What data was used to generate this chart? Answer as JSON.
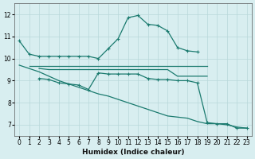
{
  "xlabel": "Humidex (Indice chaleur)",
  "bg_color": "#d8eef0",
  "line_color": "#1a7a6e",
  "grid_color": "#b8d8da",
  "xlim": [
    -0.5,
    23.5
  ],
  "ylim": [
    6.5,
    12.5
  ],
  "yticks": [
    7,
    8,
    9,
    10,
    11,
    12
  ],
  "xticks": [
    0,
    1,
    2,
    3,
    4,
    5,
    6,
    7,
    8,
    9,
    10,
    11,
    12,
    13,
    14,
    15,
    16,
    17,
    18,
    19,
    20,
    21,
    22,
    23
  ],
  "series": [
    {
      "x": [
        0,
        1,
        2,
        3,
        4,
        5,
        6,
        7,
        8,
        9,
        10,
        11,
        12,
        13,
        14,
        15,
        16,
        17,
        18
      ],
      "y": [
        10.8,
        10.2,
        10.1,
        10.1,
        10.1,
        10.1,
        10.1,
        10.1,
        10.0,
        10.45,
        10.9,
        11.85,
        11.95,
        11.55,
        11.5,
        11.25,
        10.5,
        10.35,
        10.3
      ],
      "marker": "+"
    },
    {
      "x": [
        1,
        2,
        3,
        4,
        5,
        6,
        7,
        8,
        9,
        10,
        11,
        12,
        13,
        14,
        15,
        16,
        17,
        18,
        19
      ],
      "y": [
        9.65,
        9.65,
        9.65,
        9.65,
        9.65,
        9.65,
        9.65,
        9.65,
        9.65,
        9.65,
        9.65,
        9.65,
        9.65,
        9.65,
        9.65,
        9.65,
        9.65,
        9.65,
        9.65
      ],
      "marker": null
    },
    {
      "x": [
        2,
        3,
        4,
        5,
        6,
        7,
        8,
        9,
        10,
        11,
        12,
        13,
        14,
        15,
        16,
        17,
        18,
        19
      ],
      "y": [
        9.55,
        9.5,
        9.5,
        9.5,
        9.5,
        9.5,
        9.5,
        9.5,
        9.5,
        9.5,
        9.5,
        9.5,
        9.5,
        9.5,
        9.2,
        9.2,
        9.2,
        9.2
      ],
      "marker": null
    },
    {
      "x": [
        2,
        3,
        4,
        5,
        6,
        7,
        8,
        9,
        10,
        11,
        12,
        13,
        14,
        15,
        16,
        17,
        18,
        19,
        20,
        21,
        22,
        23
      ],
      "y": [
        9.1,
        9.05,
        8.9,
        8.85,
        8.8,
        8.6,
        9.35,
        9.3,
        9.3,
        9.3,
        9.3,
        9.1,
        9.05,
        9.05,
        9.0,
        9.0,
        8.9,
        7.1,
        7.05,
        7.05,
        6.85,
        6.85
      ],
      "marker": "+"
    },
    {
      "x": [
        0,
        2,
        3,
        4,
        5,
        6,
        7,
        8,
        9,
        10,
        11,
        12,
        13,
        14,
        15,
        16,
        17,
        18,
        19,
        20,
        21,
        22,
        23
      ],
      "y": [
        9.7,
        9.4,
        9.2,
        9.0,
        8.85,
        8.7,
        8.55,
        8.4,
        8.3,
        8.15,
        8.0,
        7.85,
        7.7,
        7.55,
        7.4,
        7.35,
        7.3,
        7.15,
        7.05,
        7.05,
        7.0,
        6.9,
        6.85
      ],
      "marker": null
    }
  ]
}
